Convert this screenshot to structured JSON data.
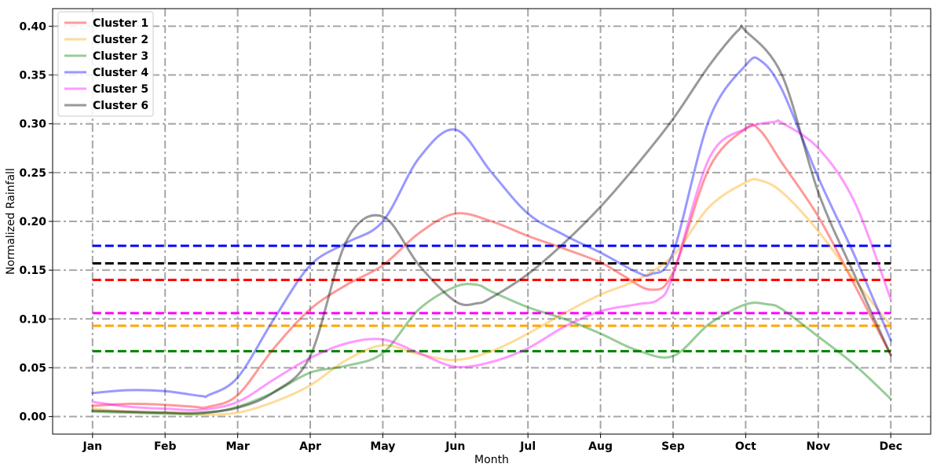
{
  "chart_data": {
    "type": "line",
    "xlabel": "Month",
    "ylabel": "Normalized Rainfall",
    "categories": [
      "Jan",
      "Feb",
      "Mar",
      "Apr",
      "May",
      "Jun",
      "Jul",
      "Aug",
      "Sep",
      "Oct",
      "Nov",
      "Dec"
    ],
    "ylim": [
      -0.018,
      0.418
    ],
    "yticks": [
      0.0,
      0.05,
      0.1,
      0.15,
      0.2,
      0.25,
      0.3,
      0.35,
      0.4
    ],
    "ytick_labels": [
      "0.00",
      "0.05",
      "0.10",
      "0.15",
      "0.20",
      "0.25",
      "0.30",
      "0.35",
      "0.40"
    ],
    "grid": true,
    "legend_position": "top-left",
    "series": [
      {
        "name": "Cluster 1",
        "color": "#ff0000",
        "points": [
          [
            1,
            0.011
          ],
          [
            1.5,
            0.013
          ],
          [
            2,
            0.012
          ],
          [
            2.4,
            0.01
          ],
          [
            2.6,
            0.01
          ],
          [
            3,
            0.022
          ],
          [
            3.5,
            0.07
          ],
          [
            4,
            0.11
          ],
          [
            4.5,
            0.135
          ],
          [
            5,
            0.155
          ],
          [
            5.5,
            0.188
          ],
          [
            6,
            0.208
          ],
          [
            6.5,
            0.2
          ],
          [
            7,
            0.185
          ],
          [
            7.5,
            0.172
          ],
          [
            8,
            0.158
          ],
          [
            8.3,
            0.145
          ],
          [
            8.7,
            0.13
          ],
          [
            9,
            0.148
          ],
          [
            9.5,
            0.255
          ],
          [
            10,
            0.295
          ],
          [
            10.2,
            0.293
          ],
          [
            10.5,
            0.26
          ],
          [
            11,
            0.205
          ],
          [
            11.5,
            0.135
          ],
          [
            12,
            0.063
          ]
        ],
        "mean": 0.14
      },
      {
        "name": "Cluster 2",
        "color": "#ffa500",
        "points": [
          [
            1,
            0.008
          ],
          [
            1.5,
            0.005
          ],
          [
            2,
            0.004
          ],
          [
            2.5,
            0.002
          ],
          [
            3,
            0.004
          ],
          [
            3.5,
            0.015
          ],
          [
            4,
            0.032
          ],
          [
            4.5,
            0.058
          ],
          [
            5,
            0.073
          ],
          [
            5.5,
            0.064
          ],
          [
            6,
            0.058
          ],
          [
            6.5,
            0.067
          ],
          [
            7,
            0.085
          ],
          [
            7.5,
            0.106
          ],
          [
            8,
            0.125
          ],
          [
            8.5,
            0.14
          ],
          [
            9,
            0.165
          ],
          [
            9.5,
            0.215
          ],
          [
            10,
            0.24
          ],
          [
            10.2,
            0.242
          ],
          [
            10.5,
            0.23
          ],
          [
            11,
            0.19
          ],
          [
            11.5,
            0.14
          ],
          [
            12,
            0.093
          ]
        ],
        "mean": 0.093
      },
      {
        "name": "Cluster 3",
        "color": "#008000",
        "points": [
          [
            1,
            0.005
          ],
          [
            1.5,
            0.004
          ],
          [
            2,
            0.003
          ],
          [
            2.5,
            0.003
          ],
          [
            3,
            0.01
          ],
          [
            3.5,
            0.025
          ],
          [
            4,
            0.045
          ],
          [
            4.5,
            0.052
          ],
          [
            5,
            0.065
          ],
          [
            5.5,
            0.11
          ],
          [
            6,
            0.133
          ],
          [
            6.3,
            0.135
          ],
          [
            6.5,
            0.128
          ],
          [
            7,
            0.112
          ],
          [
            7.5,
            0.1
          ],
          [
            8,
            0.085
          ],
          [
            8.5,
            0.068
          ],
          [
            9,
            0.062
          ],
          [
            9.5,
            0.095
          ],
          [
            10,
            0.115
          ],
          [
            10.3,
            0.115
          ],
          [
            10.5,
            0.11
          ],
          [
            11,
            0.082
          ],
          [
            11.5,
            0.053
          ],
          [
            12,
            0.018
          ]
        ],
        "mean": 0.067
      },
      {
        "name": "Cluster 4",
        "color": "#0000ff",
        "points": [
          [
            1,
            0.024
          ],
          [
            1.5,
            0.027
          ],
          [
            2,
            0.026
          ],
          [
            2.5,
            0.021
          ],
          [
            2.6,
            0.022
          ],
          [
            3,
            0.04
          ],
          [
            3.5,
            0.1
          ],
          [
            4,
            0.155
          ],
          [
            4.5,
            0.178
          ],
          [
            5,
            0.2
          ],
          [
            5.5,
            0.265
          ],
          [
            6,
            0.294
          ],
          [
            6.5,
            0.25
          ],
          [
            7,
            0.208
          ],
          [
            7.5,
            0.186
          ],
          [
            8,
            0.168
          ],
          [
            8.5,
            0.148
          ],
          [
            8.7,
            0.146
          ],
          [
            9,
            0.168
          ],
          [
            9.5,
            0.305
          ],
          [
            10,
            0.36
          ],
          [
            10.2,
            0.365
          ],
          [
            10.5,
            0.335
          ],
          [
            11,
            0.245
          ],
          [
            11.5,
            0.165
          ],
          [
            12,
            0.078
          ]
        ],
        "mean": 0.175
      },
      {
        "name": "Cluster 5",
        "color": "#ff00ff",
        "points": [
          [
            1,
            0.015
          ],
          [
            1.5,
            0.01
          ],
          [
            2,
            0.008
          ],
          [
            2.5,
            0.007
          ],
          [
            3,
            0.015
          ],
          [
            3.5,
            0.038
          ],
          [
            4,
            0.06
          ],
          [
            4.5,
            0.075
          ],
          [
            5,
            0.079
          ],
          [
            5.5,
            0.065
          ],
          [
            6,
            0.051
          ],
          [
            6.5,
            0.056
          ],
          [
            7,
            0.07
          ],
          [
            7.5,
            0.092
          ],
          [
            8,
            0.108
          ],
          [
            8.5,
            0.115
          ],
          [
            8.8,
            0.12
          ],
          [
            9,
            0.145
          ],
          [
            9.5,
            0.265
          ],
          [
            10,
            0.295
          ],
          [
            10.4,
            0.302
          ],
          [
            10.5,
            0.301
          ],
          [
            11,
            0.275
          ],
          [
            11.5,
            0.22
          ],
          [
            12,
            0.12
          ]
        ],
        "mean": 0.106
      },
      {
        "name": "Cluster 6",
        "color": "#000000",
        "points": [
          [
            1,
            0.006
          ],
          [
            1.5,
            0.005
          ],
          [
            2,
            0.004
          ],
          [
            2.5,
            0.004
          ],
          [
            3,
            0.009
          ],
          [
            3.5,
            0.025
          ],
          [
            4,
            0.062
          ],
          [
            4.5,
            0.18
          ],
          [
            5,
            0.205
          ],
          [
            5.5,
            0.155
          ],
          [
            6,
            0.118
          ],
          [
            6.3,
            0.116
          ],
          [
            6.5,
            0.122
          ],
          [
            7,
            0.146
          ],
          [
            7.5,
            0.178
          ],
          [
            8,
            0.215
          ],
          [
            8.5,
            0.258
          ],
          [
            9,
            0.305
          ],
          [
            9.5,
            0.36
          ],
          [
            9.9,
            0.396
          ],
          [
            10,
            0.395
          ],
          [
            10.5,
            0.35
          ],
          [
            11,
            0.23
          ],
          [
            11.5,
            0.145
          ],
          [
            12,
            0.063
          ]
        ],
        "mean": 0.157
      }
    ]
  }
}
